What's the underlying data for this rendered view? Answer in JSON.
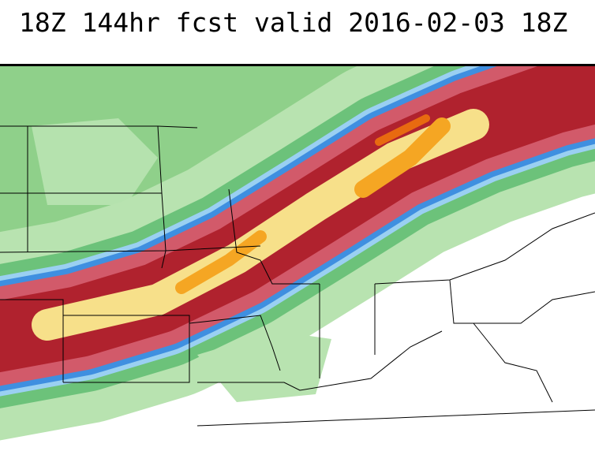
{
  "header": {
    "title": "18Z 144hr fcst valid 2016-02-03 18Z"
  }
}
